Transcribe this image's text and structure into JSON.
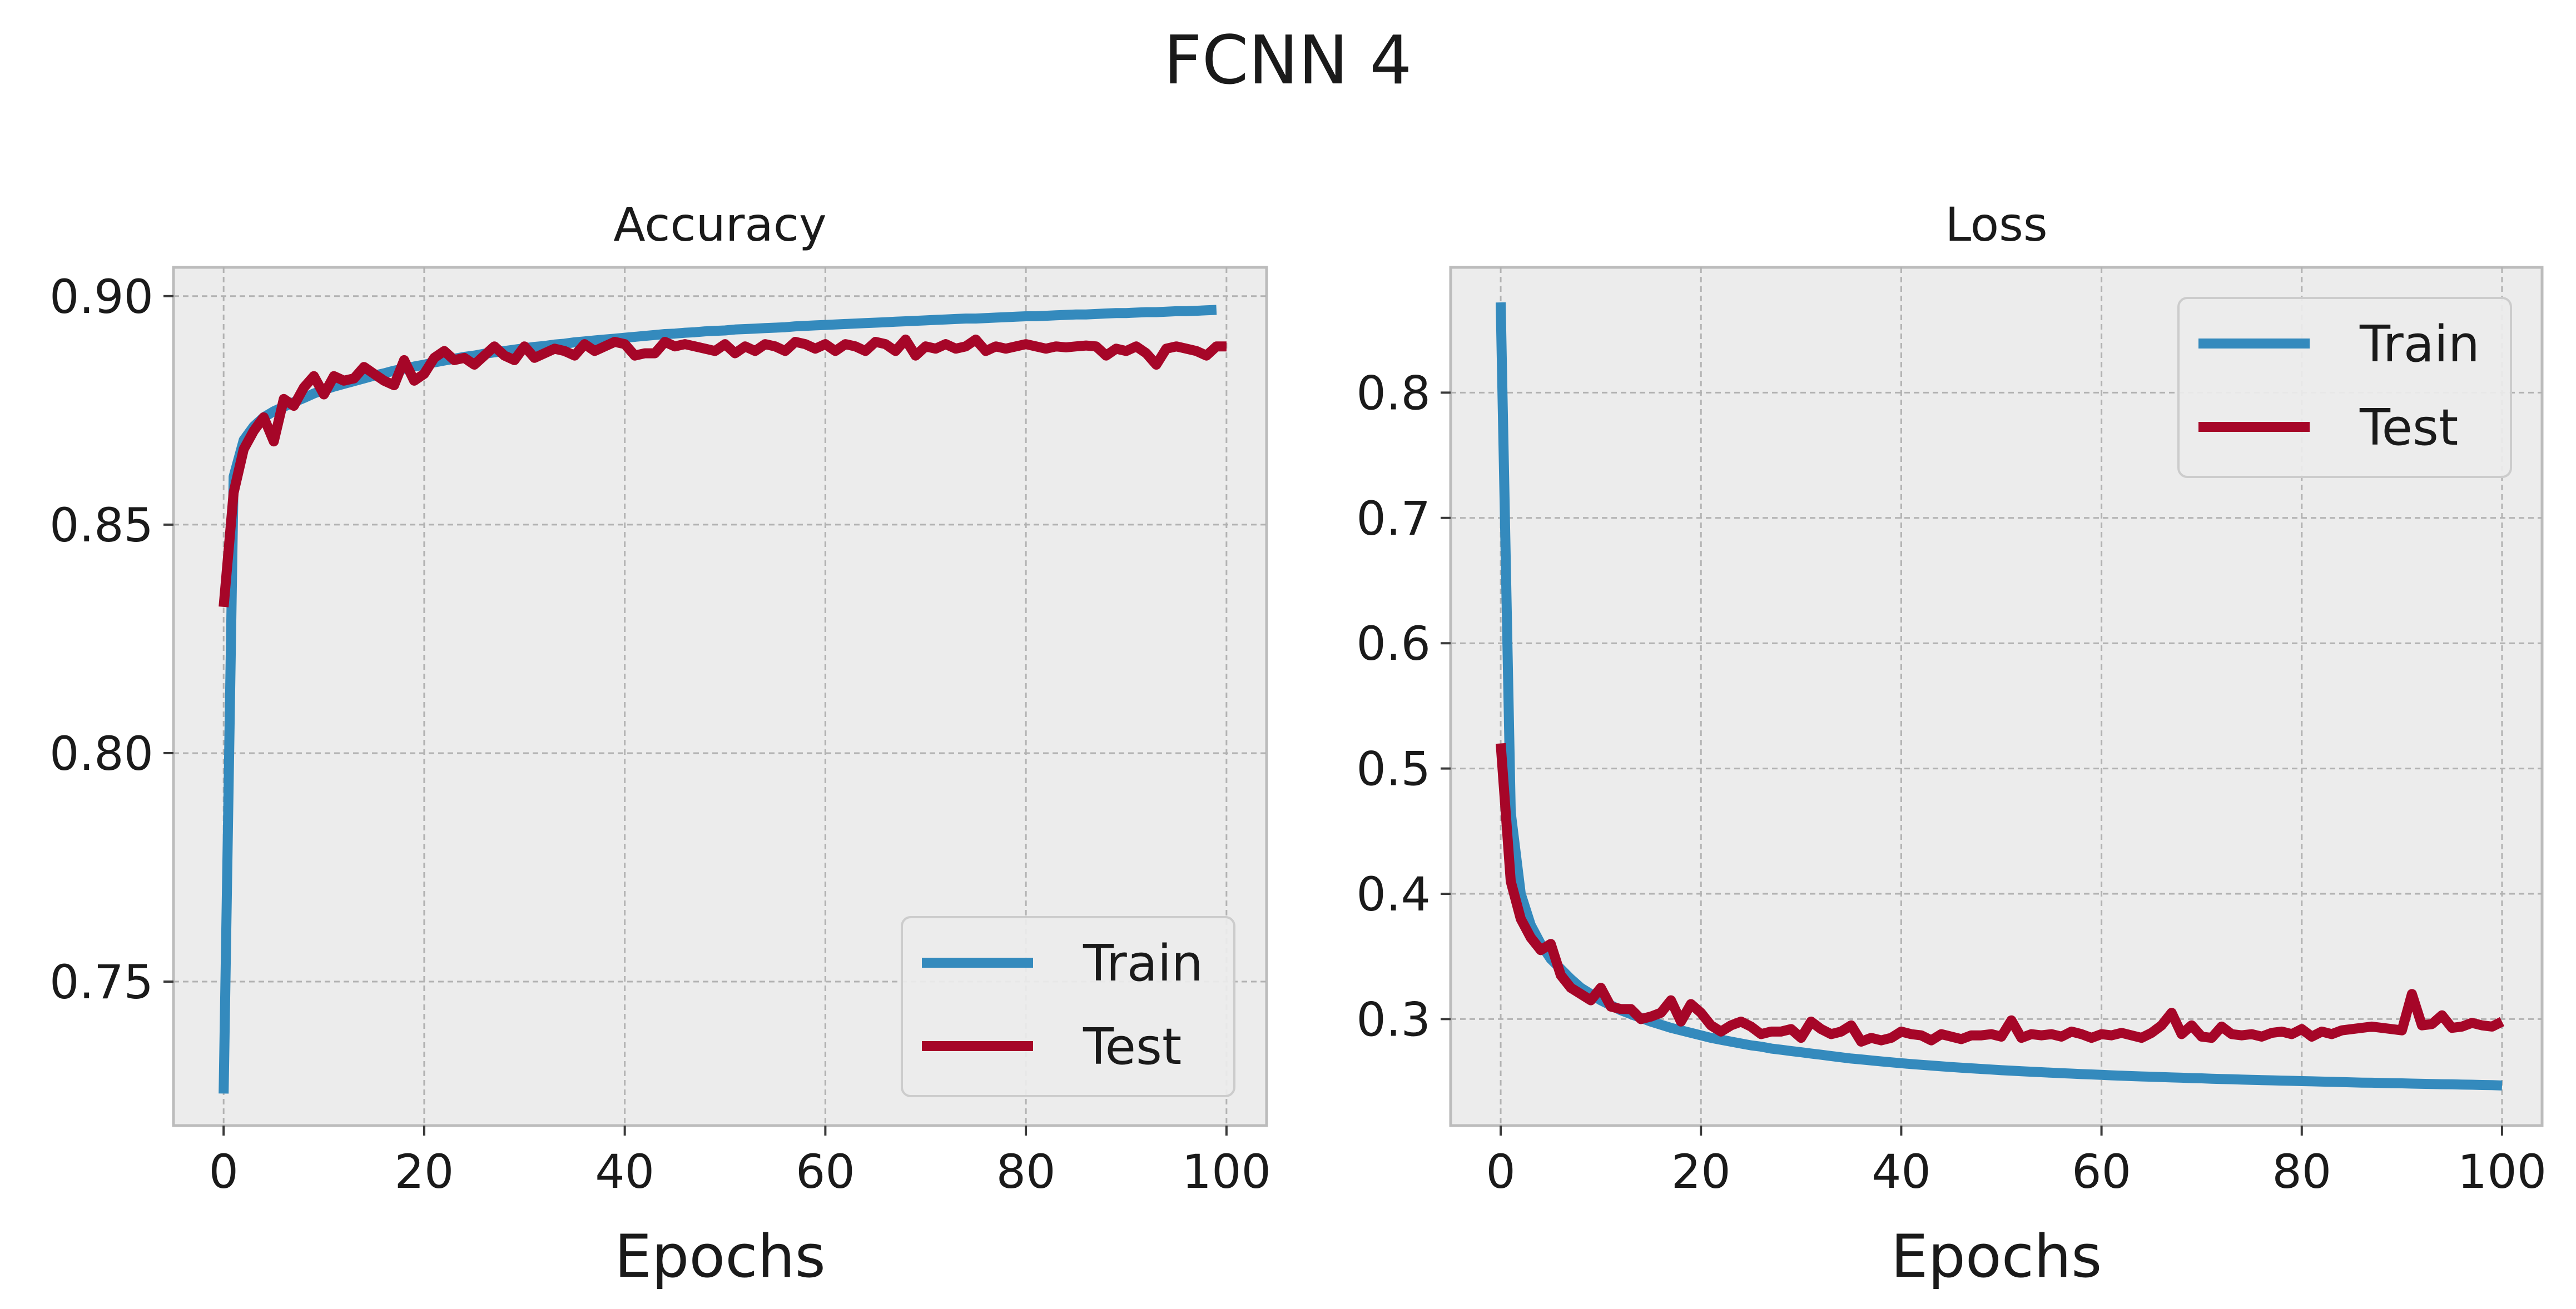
{
  "figure": {
    "title": "FCNN 4"
  },
  "colors": {
    "train": "#348ABD",
    "test": "#A60628"
  },
  "chart_data": [
    {
      "type": "line",
      "title": "Accuracy",
      "xlabel": "Epochs",
      "ylabel": "",
      "xlim": [
        -5,
        104
      ],
      "ylim": [
        0.7185,
        0.9063
      ],
      "xticks": [
        0,
        20,
        40,
        60,
        80,
        100
      ],
      "xtick_labels": [
        "0",
        "20",
        "40",
        "60",
        "80",
        "100"
      ],
      "yticks": [
        0.75,
        0.8,
        0.85,
        0.9
      ],
      "ytick_labels": [
        "0.75",
        "0.80",
        "0.85",
        "0.90"
      ],
      "grid": true,
      "legend_position": "lower-right",
      "series": [
        {
          "name": "Train",
          "color": "#348ABD",
          "values": [
            0.7255,
            0.8605,
            0.8685,
            0.8715,
            0.8735,
            0.8748,
            0.8758,
            0.8768,
            0.8777,
            0.8787,
            0.8795,
            0.8802,
            0.8808,
            0.8814,
            0.882,
            0.8826,
            0.8831,
            0.8837,
            0.8841,
            0.8846,
            0.885,
            0.8855,
            0.8859,
            0.8863,
            0.8867,
            0.887,
            0.8874,
            0.8877,
            0.888,
            0.8883,
            0.8886,
            0.8889,
            0.8891,
            0.8894,
            0.8896,
            0.8899,
            0.8901,
            0.8903,
            0.8905,
            0.8907,
            0.8909,
            0.8911,
            0.8913,
            0.8915,
            0.8917,
            0.8918,
            0.892,
            0.8921,
            0.8923,
            0.8924,
            0.8925,
            0.8927,
            0.8928,
            0.8929,
            0.893,
            0.8931,
            0.8932,
            0.8934,
            0.8935,
            0.8936,
            0.8937,
            0.8938,
            0.8939,
            0.894,
            0.8941,
            0.8942,
            0.8943,
            0.8944,
            0.8945,
            0.8946,
            0.8947,
            0.8948,
            0.8949,
            0.895,
            0.8951,
            0.8951,
            0.8952,
            0.8953,
            0.8954,
            0.8955,
            0.8956,
            0.8956,
            0.8957,
            0.8958,
            0.8959,
            0.896,
            0.896,
            0.8961,
            0.8962,
            0.8963,
            0.8963,
            0.8964,
            0.8965,
            0.8965,
            0.8966,
            0.8967,
            0.8967,
            0.8968,
            0.8969,
            0.897
          ]
        },
        {
          "name": "Test",
          "color": "#A60628",
          "values": [
            0.832,
            0.857,
            0.8665,
            0.8705,
            0.8735,
            0.8682,
            0.8775,
            0.876,
            0.88,
            0.8825,
            0.8785,
            0.8825,
            0.8815,
            0.882,
            0.8845,
            0.883,
            0.8815,
            0.8805,
            0.886,
            0.8815,
            0.883,
            0.8865,
            0.888,
            0.886,
            0.8865,
            0.885,
            0.887,
            0.889,
            0.887,
            0.886,
            0.889,
            0.8865,
            0.8875,
            0.8885,
            0.888,
            0.887,
            0.8895,
            0.888,
            0.889,
            0.89,
            0.8895,
            0.887,
            0.8875,
            0.8875,
            0.89,
            0.889,
            0.8895,
            0.889,
            0.8885,
            0.888,
            0.8895,
            0.8875,
            0.889,
            0.888,
            0.8895,
            0.889,
            0.888,
            0.89,
            0.8895,
            0.8885,
            0.8895,
            0.888,
            0.8895,
            0.889,
            0.888,
            0.89,
            0.8895,
            0.888,
            0.8905,
            0.887,
            0.889,
            0.8885,
            0.8895,
            0.8885,
            0.889,
            0.8905,
            0.888,
            0.889,
            0.8885,
            0.889,
            0.8895,
            0.889,
            0.8885,
            0.889,
            0.8888,
            0.889,
            0.8892,
            0.889,
            0.887,
            0.8885,
            0.888,
            0.889,
            0.8875,
            0.885,
            0.8885,
            0.889,
            0.8885,
            0.888,
            0.887,
            0.889,
            0.889
          ]
        }
      ]
    },
    {
      "type": "line",
      "title": "Loss",
      "xlabel": "Epochs",
      "ylabel": "",
      "xlim": [
        -5,
        104
      ],
      "ylim": [
        0.215,
        0.9
      ],
      "xticks": [
        0,
        20,
        40,
        60,
        80,
        100
      ],
      "xtick_labels": [
        "0",
        "20",
        "40",
        "60",
        "80",
        "100"
      ],
      "yticks": [
        0.3,
        0.4,
        0.5,
        0.6,
        0.7,
        0.8
      ],
      "ytick_labels": [
        "0.3",
        "0.4",
        "0.5",
        "0.6",
        "0.7",
        "0.8"
      ],
      "grid": true,
      "legend_position": "upper-right",
      "series": [
        {
          "name": "Train",
          "color": "#348ABD",
          "values": [
            0.872,
            0.465,
            0.4,
            0.375,
            0.36,
            0.348,
            0.34,
            0.332,
            0.325,
            0.32,
            0.315,
            0.311,
            0.307,
            0.304,
            0.301,
            0.298,
            0.2955,
            0.293,
            0.291,
            0.289,
            0.287,
            0.285,
            0.2835,
            0.282,
            0.2805,
            0.279,
            0.278,
            0.2765,
            0.2755,
            0.2745,
            0.2735,
            0.2725,
            0.2715,
            0.2705,
            0.2695,
            0.2685,
            0.2678,
            0.267,
            0.2662,
            0.2655,
            0.2648,
            0.2641,
            0.2635,
            0.2629,
            0.2623,
            0.2617,
            0.2612,
            0.2607,
            0.2602,
            0.2597,
            0.2592,
            0.2588,
            0.2584,
            0.258,
            0.2576,
            0.2572,
            0.2568,
            0.2565,
            0.2561,
            0.2558,
            0.2555,
            0.2551,
            0.2548,
            0.2545,
            0.2542,
            0.254,
            0.2537,
            0.2534,
            0.2532,
            0.2529,
            0.2527,
            0.2524,
            0.2522,
            0.252,
            0.2517,
            0.2515,
            0.2513,
            0.2511,
            0.2509,
            0.2507,
            0.2505,
            0.2503,
            0.2501,
            0.2499,
            0.2497,
            0.2495,
            0.2493,
            0.2492,
            0.249,
            0.2488,
            0.2487,
            0.2485,
            0.2483,
            0.2482,
            0.248,
            0.2479,
            0.2477,
            0.2476,
            0.2474,
            0.2473,
            0.247
          ]
        },
        {
          "name": "Test",
          "color": "#A60628",
          "values": [
            0.52,
            0.41,
            0.38,
            0.365,
            0.355,
            0.36,
            0.335,
            0.325,
            0.32,
            0.315,
            0.325,
            0.31,
            0.308,
            0.308,
            0.3,
            0.302,
            0.305,
            0.315,
            0.298,
            0.312,
            0.305,
            0.295,
            0.29,
            0.295,
            0.298,
            0.294,
            0.288,
            0.29,
            0.29,
            0.292,
            0.285,
            0.298,
            0.292,
            0.288,
            0.29,
            0.295,
            0.282,
            0.285,
            0.283,
            0.285,
            0.29,
            0.288,
            0.287,
            0.283,
            0.288,
            0.286,
            0.284,
            0.287,
            0.287,
            0.288,
            0.286,
            0.299,
            0.285,
            0.288,
            0.287,
            0.288,
            0.286,
            0.29,
            0.288,
            0.285,
            0.288,
            0.287,
            0.289,
            0.287,
            0.285,
            0.289,
            0.295,
            0.305,
            0.288,
            0.295,
            0.286,
            0.285,
            0.294,
            0.288,
            0.287,
            0.288,
            0.286,
            0.289,
            0.29,
            0.288,
            0.292,
            0.286,
            0.29,
            0.288,
            0.291,
            0.292,
            0.293,
            0.294,
            0.293,
            0.292,
            0.291,
            0.32,
            0.295,
            0.296,
            0.303,
            0.293,
            0.294,
            0.297,
            0.295,
            0.294,
            0.298
          ]
        }
      ]
    }
  ]
}
